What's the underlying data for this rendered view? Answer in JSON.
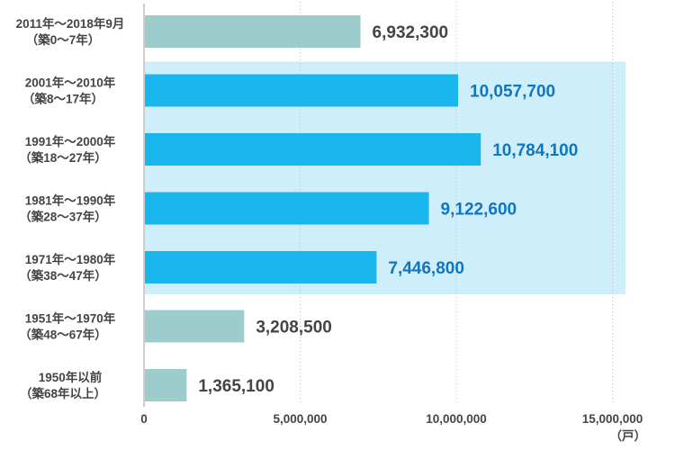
{
  "chart_data": {
    "type": "bar",
    "orientation": "horizontal",
    "categories": [
      [
        "2011年～2018年9月",
        "（築0～7年）"
      ],
      [
        "2001年～2010年",
        "（築8～17年）"
      ],
      [
        "1991年～2000年",
        "（築18～27年）"
      ],
      [
        "1981年～1990年",
        "（築28～37年）"
      ],
      [
        "1971年～1980年",
        "（築38～47年）"
      ],
      [
        "1951年～1970年",
        "（築48～67年）"
      ],
      [
        "1950年以前",
        "（築68年以上）"
      ]
    ],
    "values": [
      6932300,
      10057700,
      10784100,
      9122600,
      7446800,
      3208500,
      1365100
    ],
    "value_labels": [
      "6,932,300",
      "10,057,700",
      "10,784,100",
      "9,122,600",
      "7,446,800",
      "3,208,500",
      "1,365,100"
    ],
    "highlighted": [
      false,
      true,
      true,
      true,
      true,
      false,
      false
    ],
    "xlim": [
      0,
      15400000
    ],
    "xticks": [
      0,
      5000000,
      10000000,
      15000000
    ],
    "xtick_labels": [
      "0",
      "5,000,000",
      "10,000,000",
      "15,000,000"
    ],
    "unit_label": "（戸）",
    "grid": "vertical dotted",
    "colors": {
      "normal_bar": "#9ccccc",
      "highlight_bar": "#1ab7ef",
      "highlight_band": "#cdeefa",
      "normal_label": "#444444",
      "highlight_label": "#0f76bf",
      "axis": "#cccccc"
    }
  }
}
